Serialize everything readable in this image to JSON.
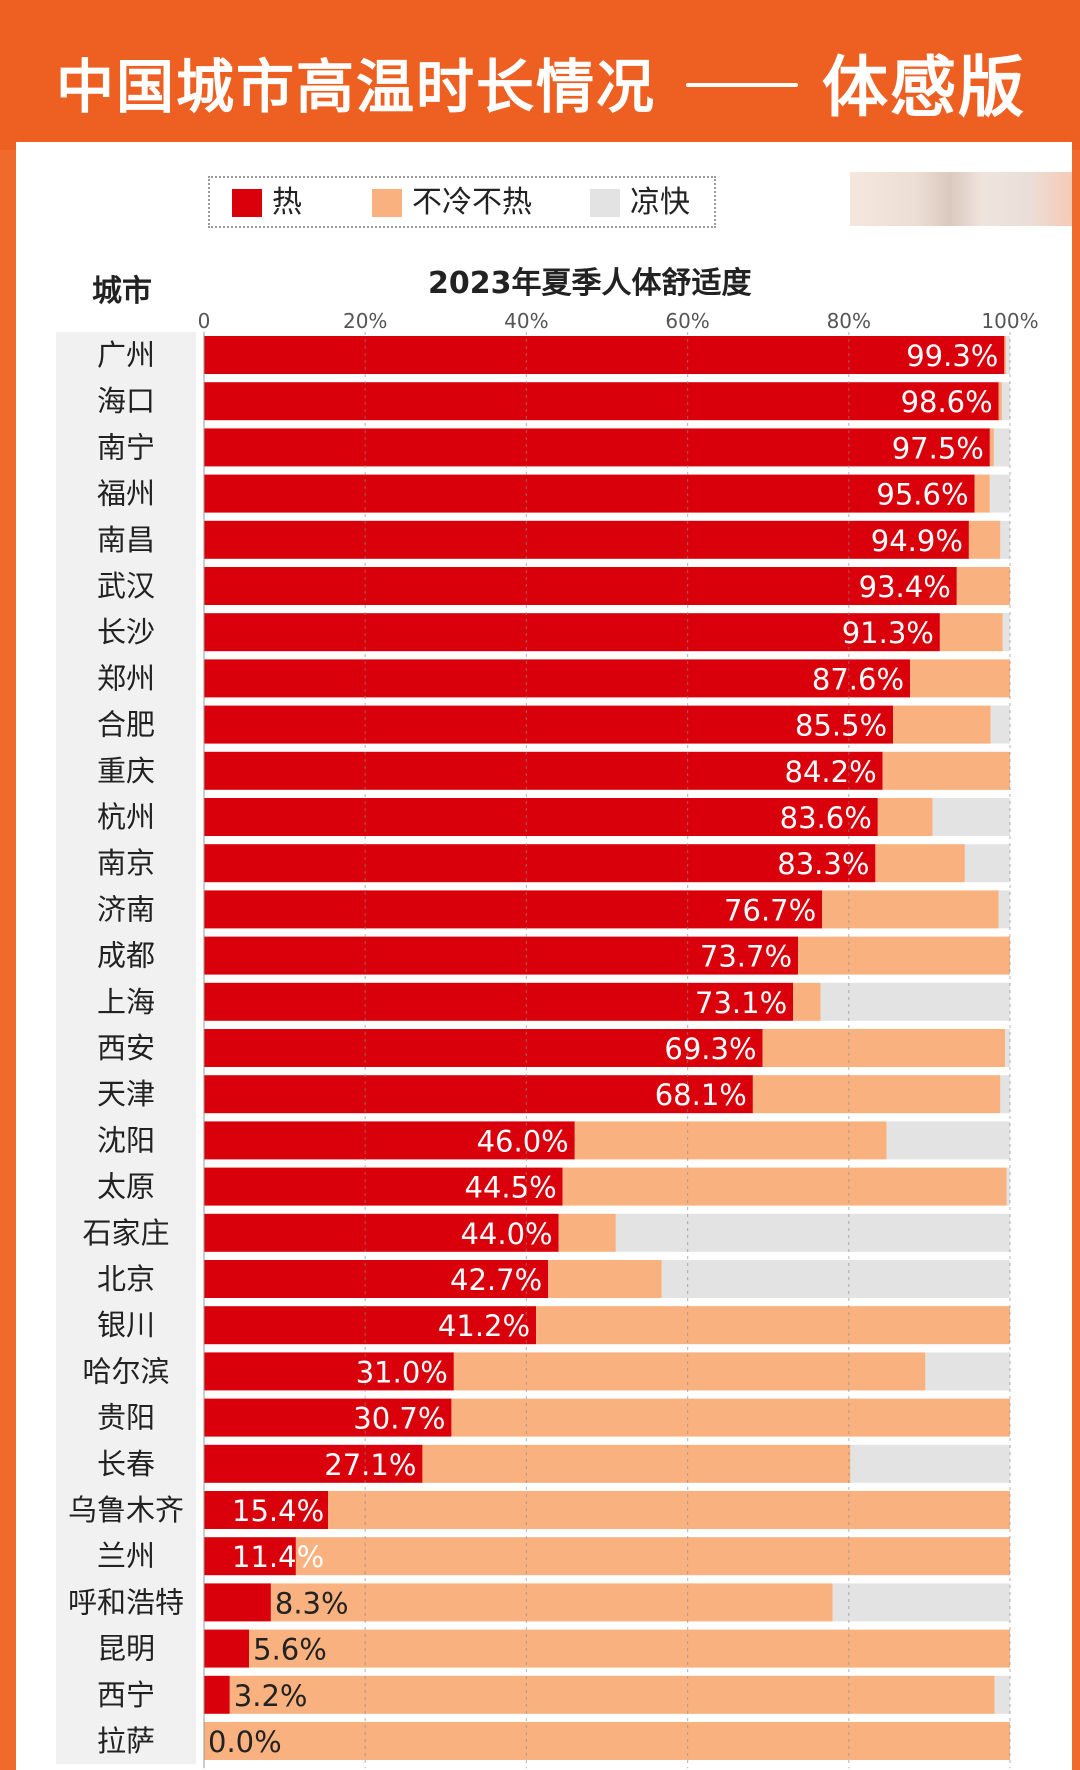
{
  "header": {
    "title": "中国城市高温时长情况",
    "suffix": "体感版"
  },
  "legend": [
    {
      "label": "热",
      "color": "#d9000c"
    },
    {
      "label": "不冷不热",
      "color": "#f9b27f"
    },
    {
      "label": "凉快",
      "color": "#e3e3e3"
    }
  ],
  "city_header": "城市",
  "chart_data": {
    "type": "bar",
    "orientation": "horizontal",
    "stacked": true,
    "title": "2023年夏季人体舒适度",
    "xlim": [
      0,
      100
    ],
    "x_ticks": [
      "0",
      "20%",
      "40%",
      "60%",
      "80%",
      "100%"
    ],
    "value_format": "%",
    "categories": [
      "广州",
      "海口",
      "南宁",
      "福州",
      "南昌",
      "武汉",
      "长沙",
      "郑州",
      "合肥",
      "重庆",
      "杭州",
      "南京",
      "济南",
      "成都",
      "上海",
      "西安",
      "天津",
      "沈阳",
      "太原",
      "石家庄",
      "北京",
      "银川",
      "哈尔滨",
      "贵阳",
      "长春",
      "乌鲁木齐",
      "兰州",
      "呼和浩特",
      "昆明",
      "西宁",
      "拉萨"
    ],
    "series": [
      {
        "name": "热",
        "color": "#d9000c",
        "values": [
          99.3,
          98.6,
          97.5,
          95.6,
          94.9,
          93.4,
          91.3,
          87.6,
          85.5,
          84.2,
          83.6,
          83.3,
          76.7,
          73.7,
          73.1,
          69.3,
          68.1,
          46.0,
          44.5,
          44.0,
          42.7,
          41.2,
          31.0,
          30.7,
          27.1,
          15.4,
          11.4,
          8.3,
          5.6,
          3.2,
          0.0
        ]
      },
      {
        "name": "不冷不热",
        "color": "#f9b27f",
        "values": [
          0.2,
          0.4,
          0.5,
          1.9,
          3.9,
          6.6,
          7.8,
          12.4,
          12.1,
          15.8,
          6.8,
          11.1,
          21.9,
          26.3,
          3.4,
          30.1,
          30.7,
          38.7,
          55.1,
          7.1,
          14.1,
          58.8,
          58.5,
          69.3,
          53.1,
          84.6,
          88.6,
          69.7,
          94.4,
          94.9,
          100.0
        ]
      },
      {
        "name": "凉快",
        "color": "#e3e3e3",
        "values": [
          0.5,
          1.0,
          2.0,
          2.5,
          1.2,
          0.0,
          0.9,
          0.0,
          2.4,
          0.0,
          9.6,
          5.6,
          1.4,
          0.0,
          23.5,
          0.6,
          1.2,
          15.3,
          0.4,
          48.9,
          43.2,
          0.0,
          10.5,
          0.0,
          19.8,
          0.0,
          0.0,
          22.0,
          0.0,
          1.9,
          0.0
        ]
      }
    ]
  }
}
